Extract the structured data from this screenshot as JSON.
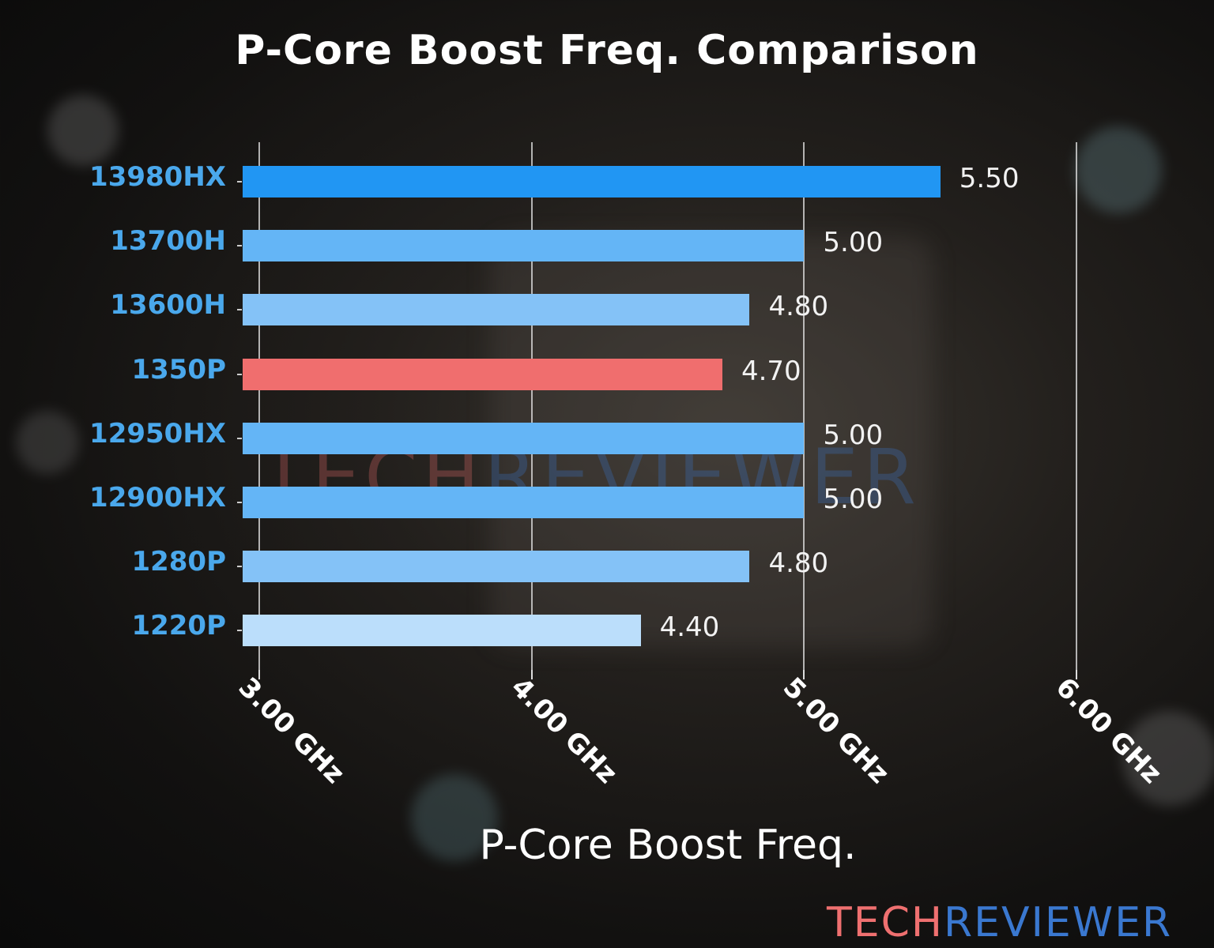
{
  "title": "P-Core Boost Freq. Comparison",
  "xlabel": "P-Core Boost Freq.",
  "watermark": {
    "part1": "TECH",
    "part2": "REVIEWER"
  },
  "logo": {
    "part1": "TECH",
    "part2": "REVIEWER",
    "colors": {
      "part1": "#ef7070",
      "part2": "#3a78d0"
    }
  },
  "x_ticks": [
    "3.00 GHz",
    "4.00 GHz",
    "5.00 GHz",
    "6.00 GHz"
  ],
  "bars": [
    {
      "label": "13980HX",
      "value": 5.5,
      "display": "5.50",
      "color": "#2196f3"
    },
    {
      "label": "13700H",
      "value": 5.0,
      "display": "5.00",
      "color": "#64b5f6"
    },
    {
      "label": "13600H",
      "value": 4.8,
      "display": "4.80",
      "color": "#84c2f7"
    },
    {
      "label": "1350P",
      "value": 4.7,
      "display": "4.70",
      "color": "#f06e6e"
    },
    {
      "label": "12950HX",
      "value": 5.0,
      "display": "5.00",
      "color": "#64b5f6"
    },
    {
      "label": "12900HX",
      "value": 5.0,
      "display": "5.00",
      "color": "#64b5f6"
    },
    {
      "label": "1280P",
      "value": 4.8,
      "display": "4.80",
      "color": "#84c2f7"
    },
    {
      "label": "1220P",
      "value": 4.4,
      "display": "4.40",
      "color": "#bbdefb"
    }
  ],
  "chart_data": {
    "type": "bar",
    "orientation": "horizontal",
    "title": "P-Core Boost Freq. Comparison",
    "xlabel": "P-Core Boost Freq.",
    "ylabel": "",
    "categories": [
      "13980HX",
      "13700H",
      "13600H",
      "1350P",
      "12950HX",
      "12900HX",
      "1280P",
      "1220P"
    ],
    "values": [
      5.5,
      5.0,
      4.8,
      4.7,
      5.0,
      5.0,
      4.8,
      4.4
    ],
    "unit": "GHz",
    "xlim": [
      2.94,
      6.05
    ],
    "x_ticks": [
      3.0,
      4.0,
      5.0,
      6.0
    ],
    "x_tick_labels": [
      "3.00 GHz",
      "4.00 GHz",
      "5.00 GHz",
      "6.00 GHz"
    ],
    "grid": "vertical",
    "legend": "none",
    "highlight": {
      "category": "1350P",
      "color": "#f06e6e"
    }
  }
}
